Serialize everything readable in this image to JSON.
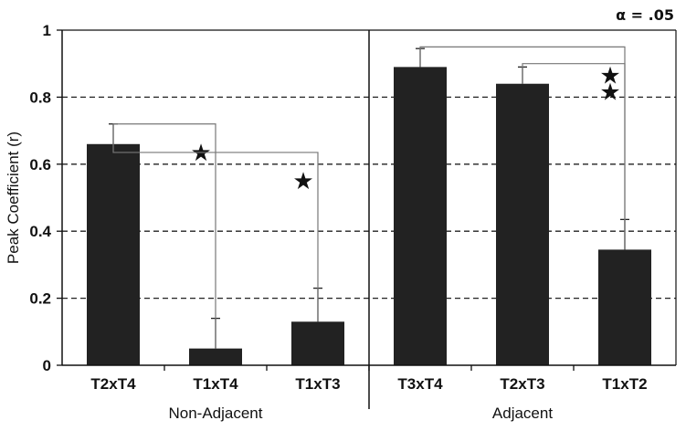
{
  "chart_data": {
    "type": "bar",
    "ylabel": "Peak Coefficient (r)",
    "ylim": [
      0,
      1
    ],
    "yticks": [
      "0",
      "0.2",
      "0.4",
      "0.6",
      "0.8",
      "1"
    ],
    "grid": "dashed horizontal",
    "annotation": "α = .05",
    "groups": [
      {
        "label": "Non-Adjacent",
        "categories": [
          "T2xT4",
          "T1xT4",
          "T1xT3"
        ]
      },
      {
        "label": "Adjacent",
        "categories": [
          "T3xT4",
          "T2xT3",
          "T1xT2"
        ]
      }
    ],
    "categories": [
      "T2xT4",
      "T1xT4",
      "T1xT3",
      "T3xT4",
      "T2xT3",
      "T1xT2"
    ],
    "values": [
      0.66,
      0.05,
      0.13,
      0.89,
      0.84,
      0.345
    ],
    "error_upper": [
      0.72,
      0.14,
      0.23,
      0.945,
      0.89,
      0.435
    ],
    "bar_color": "#222222",
    "significance": [
      {
        "from": "T2xT4",
        "to": "T1xT4",
        "marker": "★"
      },
      {
        "from": "T2xT4",
        "to": "T1xT3",
        "marker": "★"
      },
      {
        "from": "T3xT4",
        "to": "T1xT2",
        "marker": "★"
      },
      {
        "from": "T2xT3",
        "to": "T1xT2",
        "marker": "★"
      }
    ]
  }
}
